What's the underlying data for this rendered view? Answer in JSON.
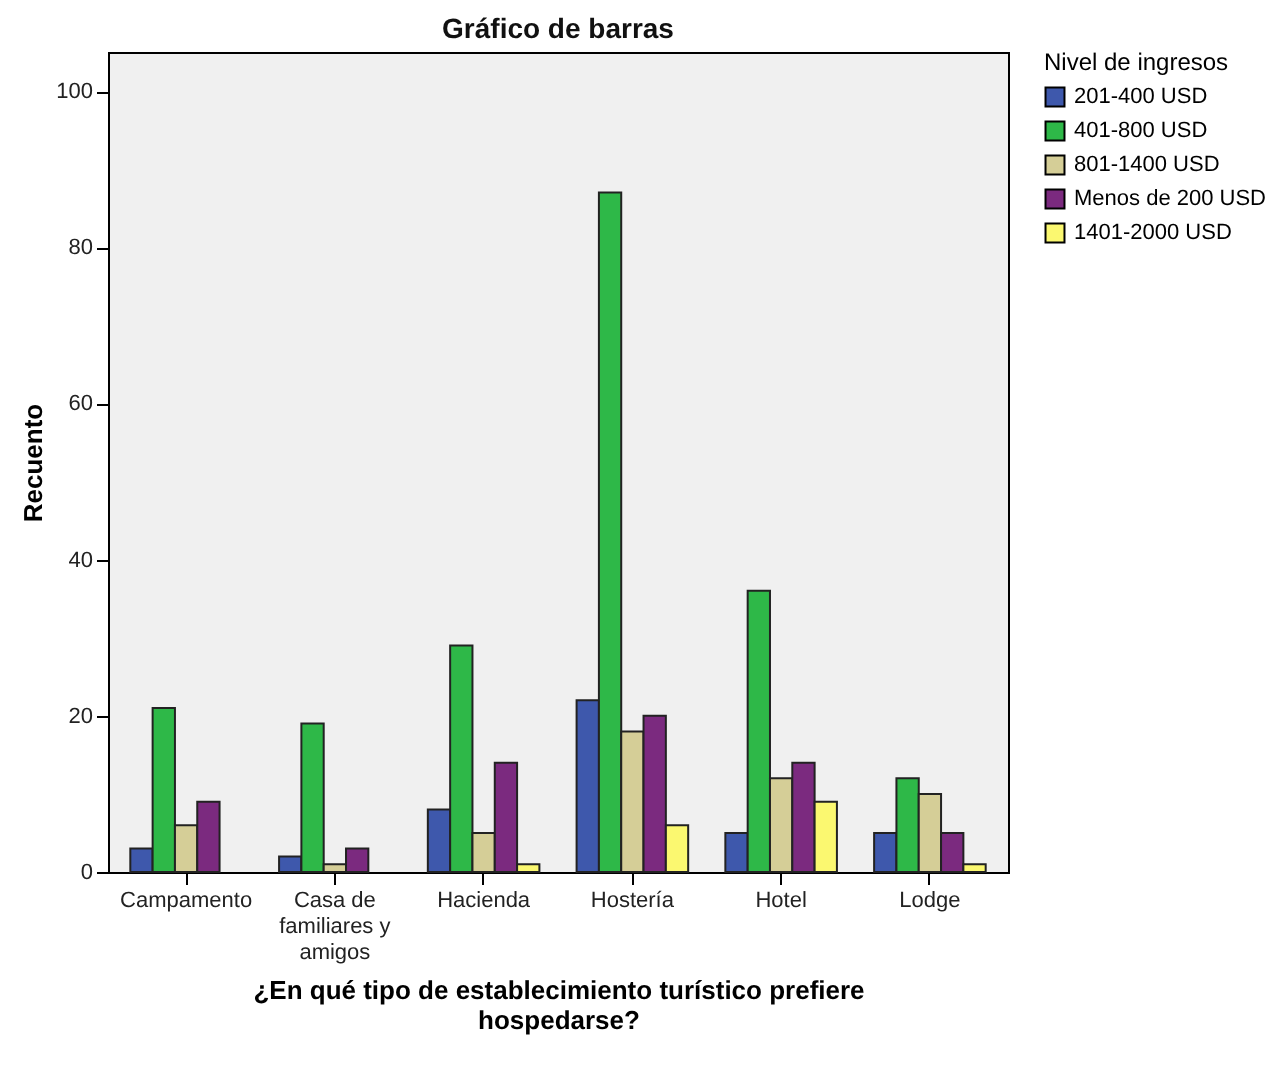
{
  "chart_data": {
    "type": "bar",
    "title": "Gráfico de barras",
    "xlabel": "¿En qué tipo de establecimiento turístico prefiere hospedarse?",
    "ylabel": "Recuento",
    "legend_title": "Nivel de ingresos",
    "categories": [
      "Campamento",
      "Casa de familiares y amigos",
      "Hacienda",
      "Hostería",
      "Hotel",
      "Lodge"
    ],
    "series": [
      {
        "name": "201-400 USD",
        "color": "#3e58ac",
        "values": [
          3,
          2,
          8,
          22,
          5,
          5
        ]
      },
      {
        "name": "401-800 USD",
        "color": "#2eb848",
        "values": [
          21,
          19,
          29,
          87,
          36,
          12
        ]
      },
      {
        "name": "801-1400 USD",
        "color": "#d5ce97",
        "values": [
          6,
          1,
          5,
          18,
          12,
          10
        ]
      },
      {
        "name": "Menos de 200 USD",
        "color": "#7b2a7f",
        "values": [
          9,
          3,
          14,
          20,
          14,
          5
        ]
      },
      {
        "name": "1401-2000 USD",
        "color": "#fbf870",
        "values": [
          null,
          null,
          1,
          6,
          9,
          1
        ]
      }
    ],
    "ylim": [
      0,
      105
    ],
    "yticks": [
      0,
      20,
      40,
      60,
      80,
      100
    ],
    "grid": false,
    "legend": "top right"
  }
}
